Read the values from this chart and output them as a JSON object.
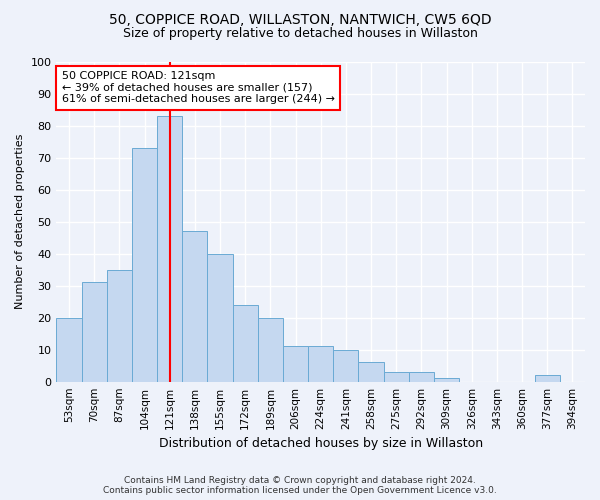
{
  "title1": "50, COPPICE ROAD, WILLASTON, NANTWICH, CW5 6QD",
  "title2": "Size of property relative to detached houses in Willaston",
  "xlabel": "Distribution of detached houses by size in Willaston",
  "ylabel": "Number of detached properties",
  "bar_labels": [
    "53sqm",
    "70sqm",
    "87sqm",
    "104sqm",
    "121sqm",
    "138sqm",
    "155sqm",
    "172sqm",
    "189sqm",
    "206sqm",
    "224sqm",
    "241sqm",
    "258sqm",
    "275sqm",
    "292sqm",
    "309sqm",
    "326sqm",
    "343sqm",
    "360sqm",
    "377sqm",
    "394sqm"
  ],
  "bar_values": [
    20,
    31,
    35,
    73,
    83,
    47,
    40,
    24,
    20,
    11,
    11,
    10,
    6,
    3,
    3,
    1,
    0,
    0,
    0,
    2,
    0
  ],
  "bar_color": "#c5d8f0",
  "bar_edge_color": "#6aaad4",
  "property_line_color": "red",
  "annotation_text": "50 COPPICE ROAD: 121sqm\n← 39% of detached houses are smaller (157)\n61% of semi-detached houses are larger (244) →",
  "annotation_box_color": "white",
  "annotation_box_edge": "red",
  "footer1": "Contains HM Land Registry data © Crown copyright and database right 2024.",
  "footer2": "Contains public sector information licensed under the Open Government Licence v3.0.",
  "background_color": "#eef2fa",
  "plot_background": "#eef2fa",
  "ylim": [
    0,
    100
  ],
  "grid_color": "white",
  "title1_fontsize": 10,
  "title2_fontsize": 9
}
